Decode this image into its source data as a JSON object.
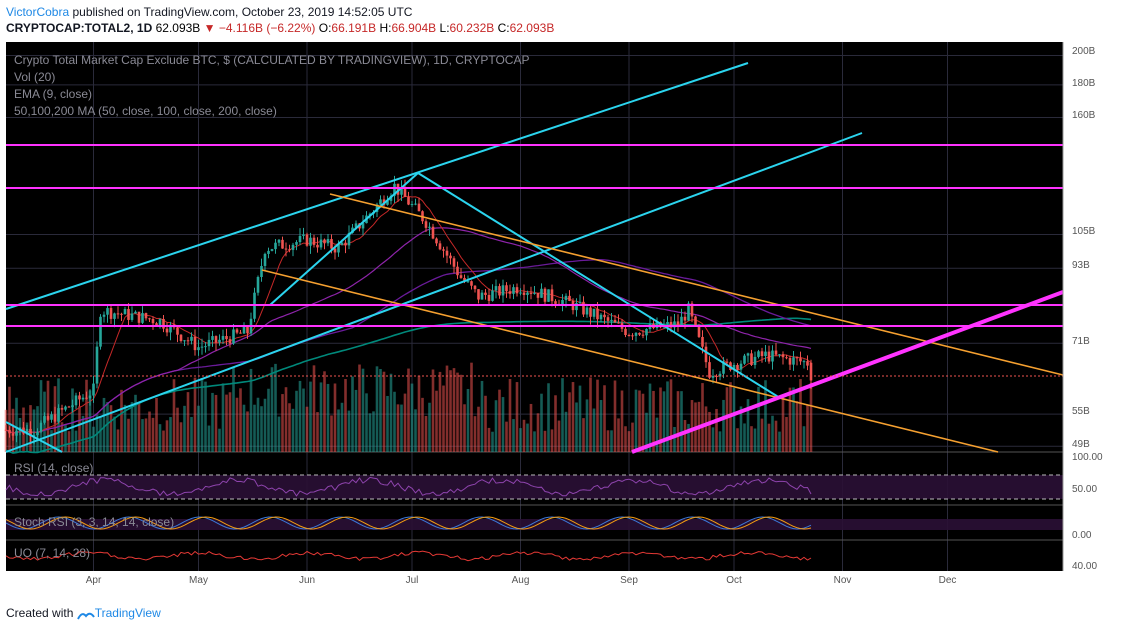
{
  "header": {
    "author": "VictorCobra",
    "published": " published on TradingView.com, October 23, 2019 14:52:05 UTC",
    "symbol": "CRYPTOCAP:TOTAL2, 1D",
    "last": "62.093B",
    "change": "▼ −4.116B (−6.22%)",
    "o_label": "O:",
    "o": "66.191B",
    "h_label": "H:",
    "h": "66.904B",
    "l_label": "L:",
    "l": "60.232B",
    "c_label": "C:",
    "c": "62.093B"
  },
  "legend": {
    "title": "Crypto Total Market Cap Exclude BTC, $ (CALCULATED BY TRADINGVIEW), 1D, CRYPTOCAP",
    "vol": "Vol (20)",
    "ema": "EMA (9, close)",
    "ma": "50,100,200 MA (50, close, 100, close, 200, close)"
  },
  "panes": {
    "rsi": "RSI (14, close)",
    "stoch": "Stoch RSI (3, 3, 14, 14, close)",
    "uo": "UO (7, 14, 28)"
  },
  "footer": {
    "created": "Created with",
    "brand": "TradingView"
  },
  "colors": {
    "up": "#26a69a",
    "down": "#ef5350",
    "cyan": "#2bd4ee",
    "orange": "#f5a030",
    "magenta": "#ff33ff",
    "ema": "#c62828",
    "ma50": "#8e24aa",
    "ma100": "#6a1b9a",
    "ma200": "#00897b",
    "pane_bg": "#000000",
    "grid": "#2a2a3a"
  },
  "chart_data": {
    "type": "candlestick",
    "symbol": "CRYPTOCAP:TOTAL2",
    "timeframe": "1D",
    "price_scale": "log",
    "x_labels": [
      "Apr",
      "May",
      "Jun",
      "Jul",
      "Aug",
      "Sep",
      "Oct",
      "Nov",
      "Dec"
    ],
    "y_ticks": [
      "200B",
      "180B",
      "160B",
      "105B",
      "93B",
      "71B",
      "55B",
      "49B"
    ],
    "horizontal_levels": [
      "141.772B",
      "121.856B",
      "80.14B",
      "74.328B"
    ],
    "last_price_label": "62.093B",
    "rsi_ticks": [
      "100.00",
      "50.00"
    ],
    "stoch_ticks": [
      "0.00"
    ],
    "uo_ticks": [
      "40.00"
    ],
    "close_path_B": [
      {
        "date": "2019-03-15",
        "close": 52
      },
      {
        "date": "2019-04-01",
        "close": 60
      },
      {
        "date": "2019-04-03",
        "close": 80
      },
      {
        "date": "2019-04-20",
        "close": 77
      },
      {
        "date": "2019-05-01",
        "close": 70
      },
      {
        "date": "2019-05-15",
        "close": 74
      },
      {
        "date": "2019-05-20",
        "close": 100
      },
      {
        "date": "2019-06-01",
        "close": 103
      },
      {
        "date": "2019-06-10",
        "close": 100
      },
      {
        "date": "2019-06-26",
        "close": 125
      },
      {
        "date": "2019-07-05",
        "close": 110
      },
      {
        "date": "2019-07-15",
        "close": 90
      },
      {
        "date": "2019-07-20",
        "close": 84
      },
      {
        "date": "2019-08-01",
        "close": 87
      },
      {
        "date": "2019-08-15",
        "close": 82
      },
      {
        "date": "2019-09-01",
        "close": 74
      },
      {
        "date": "2019-09-15",
        "close": 76
      },
      {
        "date": "2019-09-18",
        "close": 80
      },
      {
        "date": "2019-09-24",
        "close": 64
      },
      {
        "date": "2019-10-01",
        "close": 66
      },
      {
        "date": "2019-10-10",
        "close": 68
      },
      {
        "date": "2019-10-22",
        "close": 66.2
      },
      {
        "date": "2019-10-23",
        "close": 62.093
      }
    ]
  }
}
